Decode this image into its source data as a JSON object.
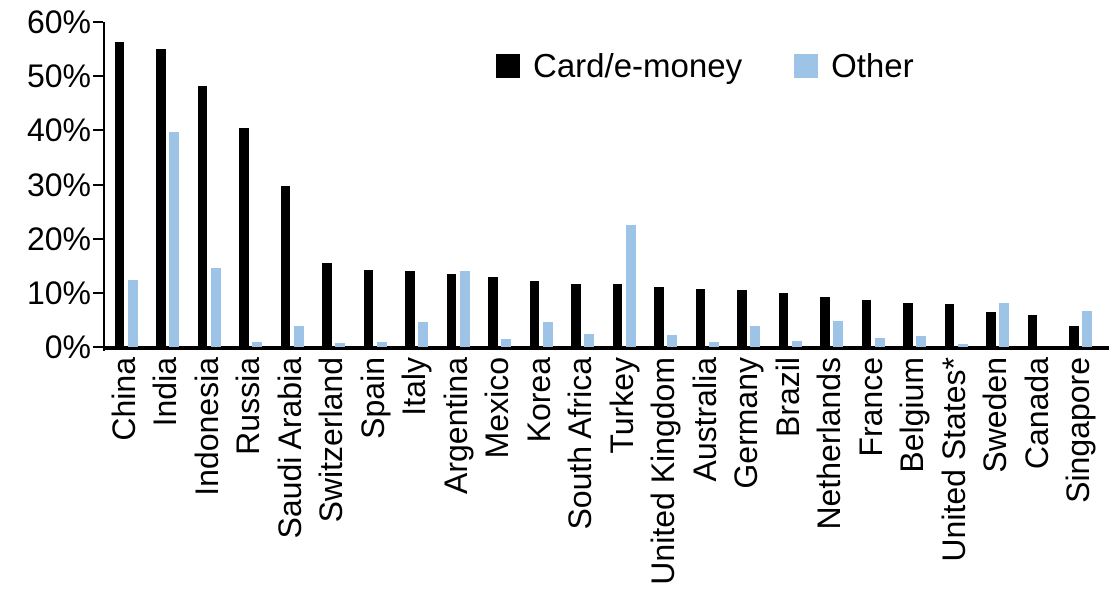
{
  "chart_data": {
    "type": "bar",
    "title": "",
    "xlabel": "",
    "ylabel": "",
    "ylim": [
      0,
      60
    ],
    "ytick_step": 10,
    "ytick_labels": [
      "0%",
      "10%",
      "20%",
      "30%",
      "40%",
      "50%",
      "60%"
    ],
    "grid": false,
    "legend_position": "top-right-inside",
    "categories": [
      "China",
      "India",
      "Indonesia",
      "Russia",
      "Saudi Arabia",
      "Switzerland",
      "Spain",
      "Italy",
      "Argentina",
      "Mexico",
      "Korea",
      "South Africa",
      "Turkey",
      "United Kingdom",
      "Australia",
      "Germany",
      "Brazil",
      "Netherlands",
      "France",
      "Belgium",
      "United States*",
      "Sweden",
      "Canada",
      "Singapore"
    ],
    "series": [
      {
        "name": "Card/e-money",
        "color": "#000000",
        "values": [
          56.3,
          55.0,
          48.2,
          40.5,
          29.8,
          15.6,
          14.2,
          14.1,
          13.4,
          12.9,
          12.2,
          11.7,
          11.6,
          11.0,
          10.8,
          10.6,
          10.0,
          9.3,
          8.7,
          8.2,
          7.9,
          6.5,
          6.0,
          3.9
        ],
        "unit": "%"
      },
      {
        "name": "Other",
        "color": "#9DC3E6",
        "values": [
          12.3,
          39.7,
          14.5,
          1.0,
          3.9,
          0.8,
          1.0,
          4.6,
          14.0,
          1.4,
          4.6,
          2.4,
          22.6,
          2.3,
          1.0,
          3.9,
          1.2,
          4.8,
          1.6,
          2.1,
          0.5,
          8.1,
          0.0,
          6.7
        ],
        "unit": "%"
      }
    ]
  }
}
